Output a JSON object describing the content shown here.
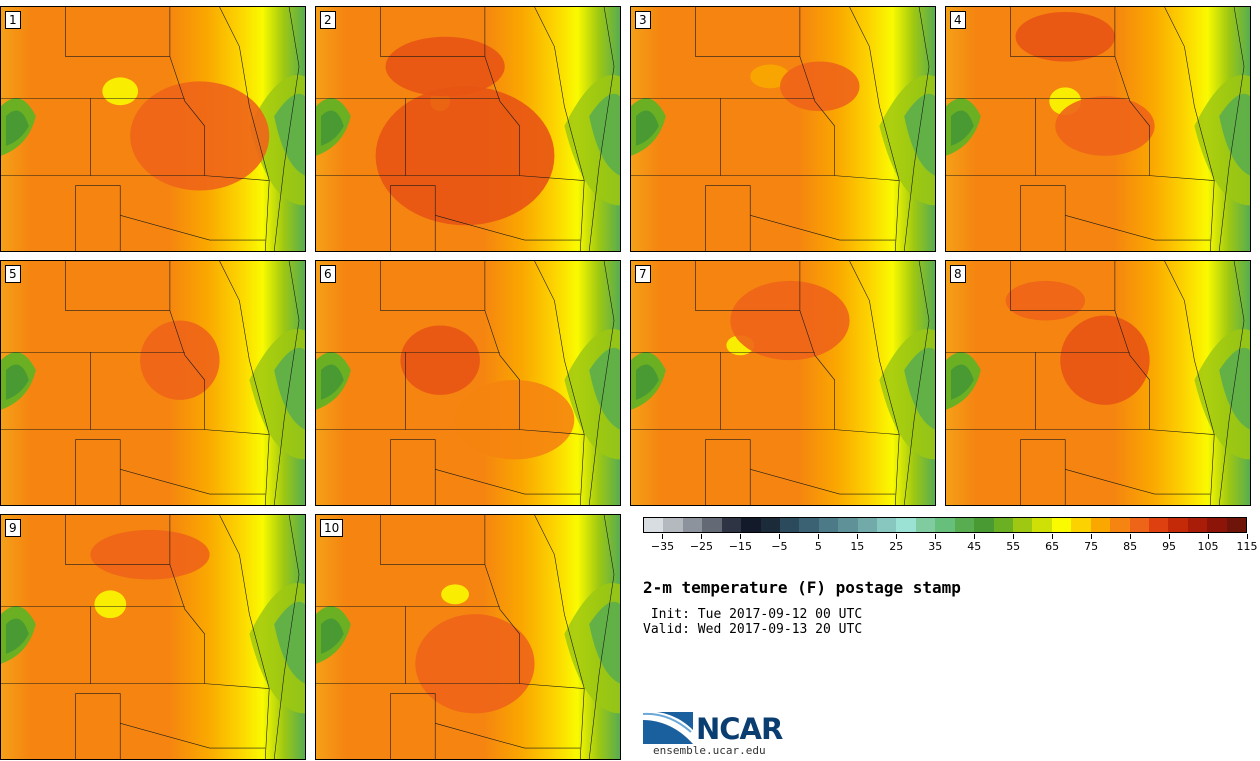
{
  "title": "2-m temperature (F) postage stamp",
  "init": " Init: Tue 2017-09-12 00 UTC",
  "valid": "Valid: Wed 2017-09-13 20 UTC",
  "logo": {
    "name": "NCAR",
    "url": "ensemble.ucar.edu"
  },
  "members": [
    {
      "label": "1"
    },
    {
      "label": "2"
    },
    {
      "label": "3"
    },
    {
      "label": "4"
    },
    {
      "label": "5"
    },
    {
      "label": "6"
    },
    {
      "label": "7"
    },
    {
      "label": "8"
    },
    {
      "label": "9"
    },
    {
      "label": "10"
    }
  ],
  "colorbar": {
    "tick_labels": [
      "−35",
      "−25",
      "−15",
      "−5",
      "5",
      "15",
      "25",
      "35",
      "45",
      "55",
      "65",
      "75",
      "85",
      "95",
      "105",
      "115"
    ],
    "colors": [
      "#d8dde2",
      "#b4b9c0",
      "#8d939c",
      "#646a75",
      "#2e3444",
      "#131a2a",
      "#1b2b3a",
      "#2b4a5c",
      "#3a6272",
      "#4c7a86",
      "#5e9298",
      "#72aaaa",
      "#88c6c0",
      "#9ce2d4",
      "#80cca0",
      "#66bf7a",
      "#58ad50",
      "#4a9a34",
      "#6ab022",
      "#9ec812",
      "#cfe006",
      "#fafa00",
      "#fcd200",
      "#faa800",
      "#f58410",
      "#ee6418",
      "#de4010",
      "#c42a08",
      "#a81c08",
      "#8c1408",
      "#6e1408"
    ]
  }
}
